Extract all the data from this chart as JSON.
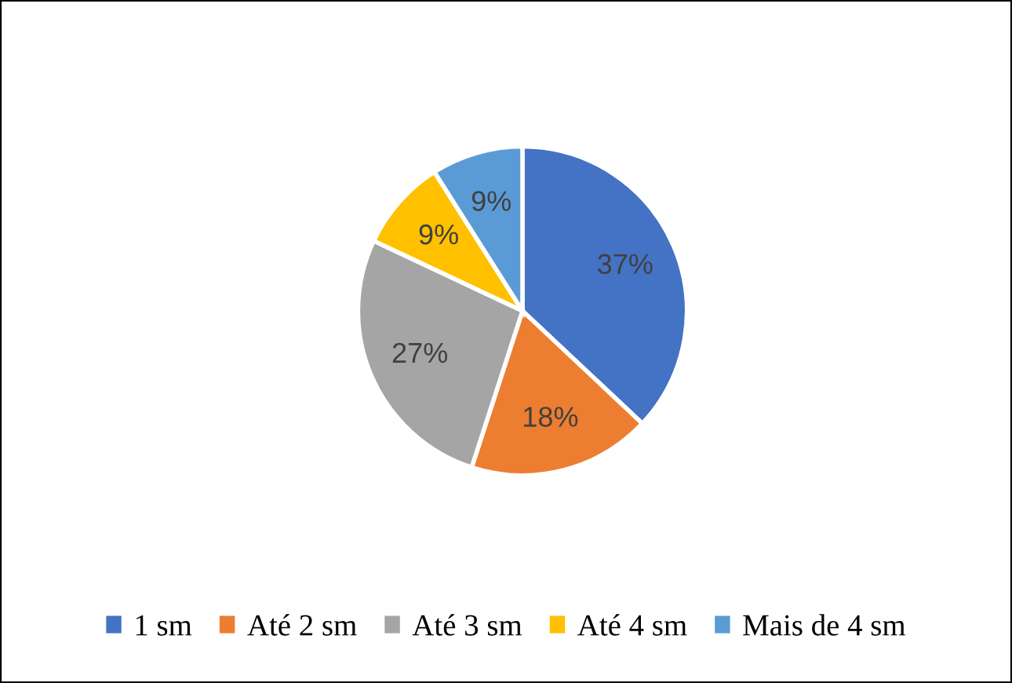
{
  "chart_data": {
    "type": "pie",
    "categories": [
      "1 sm",
      "Até 2 sm",
      "Até 3 sm",
      "Até 4 sm",
      "Mais de 4 sm"
    ],
    "values": [
      37,
      18,
      27,
      9,
      9
    ],
    "value_labels": [
      "37%",
      "18%",
      "27%",
      "9%",
      "9%"
    ],
    "colors": [
      "#4472c4",
      "#ed7d31",
      "#a5a5a5",
      "#ffc000",
      "#5b9bd5"
    ],
    "legend": "bottom"
  }
}
